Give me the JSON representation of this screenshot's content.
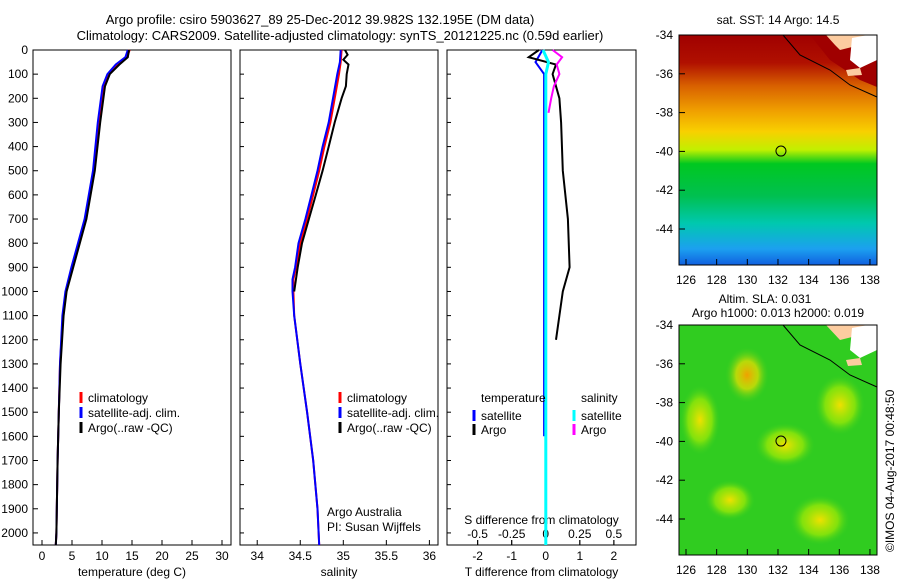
{
  "title_line1": "Argo profile: csiro 5903627_89 25-Dec-2012 39.982S 132.195E (DM data)",
  "title_line2": "Climatology: CARS2009. Satellite-adjusted climatology: synTS_20121225.nc (0.59d earlier)",
  "credit": "©IMOS 04-Aug-2017 00:48:50",
  "colors": {
    "climatology": "#ff0000",
    "satellite": "#0000ff",
    "argo": "#000000",
    "s_satellite": "#00ffff",
    "s_argo": "#ff00ff"
  },
  "chart_data": [
    {
      "type": "line",
      "name": "temperature",
      "xlabel": "temperature (deg C)",
      "ylabel": "",
      "xlim": [
        -1.5,
        31.5
      ],
      "ylim": [
        2050,
        0
      ],
      "xticks": [
        0,
        5,
        10,
        15,
        20,
        25,
        30
      ],
      "yticks": [
        0,
        100,
        200,
        300,
        400,
        500,
        600,
        700,
        800,
        900,
        1000,
        1100,
        1200,
        1300,
        1400,
        1500,
        1600,
        1700,
        1800,
        1900,
        2000
      ],
      "legend": [
        "climatology",
        "satellite-adj. clim.",
        "Argo(..raw -QC)"
      ],
      "legend_position": "lower-center",
      "series": [
        {
          "name": "climatology",
          "depth": [
            0,
            30,
            60,
            100,
            150,
            300,
            500,
            700,
            800,
            900,
            1000,
            1100,
            1300,
            1500,
            1700,
            2000,
            2050
          ],
          "values": [
            14.6,
            14.2,
            12.6,
            11.1,
            10.3,
            9.4,
            8.6,
            7.2,
            6.1,
            5.0,
            4.0,
            3.5,
            3.0,
            2.8,
            2.6,
            2.4,
            2.3
          ]
        },
        {
          "name": "satellite-adj. clim.",
          "depth": [
            0,
            30,
            60,
            100,
            150,
            300,
            500,
            700,
            800,
            900,
            1000,
            1100,
            1300,
            1500,
            1700,
            2000,
            2050
          ],
          "values": [
            14.3,
            13.9,
            12.3,
            10.9,
            10.1,
            9.3,
            8.5,
            7.1,
            6.0,
            4.9,
            3.9,
            3.4,
            3.0,
            2.8,
            2.6,
            2.4,
            2.3
          ]
        },
        {
          "name": "Argo(..raw -QC)",
          "depth": [
            0,
            30,
            60,
            100,
            150,
            300,
            500,
            700,
            800,
            900,
            1000,
            1100,
            1300,
            1500,
            1700,
            2000,
            2050
          ],
          "values": [
            14.5,
            14.3,
            12.9,
            11.3,
            10.5,
            9.7,
            8.8,
            7.4,
            6.3,
            5.2,
            4.1,
            3.6,
            3.1,
            2.8,
            2.6,
            2.4,
            2.3
          ]
        }
      ]
    },
    {
      "type": "line",
      "name": "salinity",
      "xlabel": "salinity",
      "xlim": [
        33.8,
        36.1
      ],
      "ylim": [
        2050,
        0
      ],
      "xticks": [
        34,
        34.5,
        35,
        35.5,
        36
      ],
      "legend": [
        "climatology",
        "satellite-adj. clim.",
        "Argo(..raw -QC)"
      ],
      "annotation": [
        "Argo Australia",
        "PI: Susan Wijffels"
      ],
      "series": [
        {
          "name": "climatology",
          "depth": [
            0,
            50,
            100,
            200,
            300,
            400,
            500,
            600,
            700,
            800,
            900,
            950,
            1000,
            1100,
            1300,
            1500,
            1700,
            1900,
            2050
          ],
          "values": [
            34.98,
            34.97,
            34.95,
            34.9,
            34.85,
            34.78,
            34.72,
            34.65,
            34.58,
            34.5,
            34.45,
            34.42,
            34.42,
            34.43,
            34.5,
            34.58,
            34.65,
            34.7,
            34.72
          ]
        },
        {
          "name": "satellite-adj. clim.",
          "depth": [
            0,
            50,
            100,
            200,
            300,
            400,
            500,
            600,
            700,
            800,
            900,
            950,
            1000,
            1100,
            1300,
            1500,
            1700,
            1900,
            2050
          ],
          "values": [
            34.97,
            34.96,
            34.93,
            34.88,
            34.83,
            34.76,
            34.7,
            34.63,
            34.56,
            34.48,
            34.44,
            34.41,
            34.41,
            34.43,
            34.5,
            34.58,
            34.65,
            34.7,
            34.72
          ]
        },
        {
          "name": "Argo(..raw -QC)",
          "depth": [
            0,
            20,
            40,
            60,
            100,
            150,
            200,
            300,
            400,
            500,
            600,
            700,
            800,
            900,
            1000
          ],
          "values": [
            35.02,
            35.05,
            35.0,
            35.06,
            35.04,
            35.03,
            34.98,
            34.9,
            34.83,
            34.76,
            34.68,
            34.6,
            34.52,
            34.47,
            34.43
          ]
        }
      ]
    },
    {
      "type": "line",
      "name": "differences",
      "xlabel": "T difference from climatology",
      "x2label": "S difference from climatology",
      "xlim": [
        -2.9,
        2.65
      ],
      "xticks": [
        -2,
        -1,
        0,
        1,
        2
      ],
      "x2ticks": [
        -0.5,
        -0.25,
        0,
        0.25,
        0.5
      ],
      "ylim": [
        2050,
        0
      ],
      "legend_titles": [
        "temperature",
        "salinity"
      ],
      "legend": [
        "satellite",
        "Argo",
        "satellite",
        "Argo"
      ],
      "series": [
        {
          "name": "T satellite",
          "depth": [
            0,
            50,
            100,
            300,
            600,
            1000,
            1600
          ],
          "values": [
            -0.1,
            -0.3,
            -0.05,
            -0.05,
            -0.05,
            -0.05,
            -0.05
          ]
        },
        {
          "name": "T Argo",
          "depth": [
            0,
            30,
            60,
            100,
            200,
            300,
            500,
            700,
            900,
            1000,
            1100,
            1200
          ],
          "values": [
            -0.2,
            -0.5,
            0.3,
            0.2,
            0.4,
            0.45,
            0.5,
            0.65,
            0.7,
            0.5,
            0.4,
            0.3
          ]
        },
        {
          "name": "S satellite",
          "depth": [
            0,
            50,
            100,
            300,
            600,
            1000,
            2000,
            2050
          ],
          "values": [
            -0.02,
            0.02,
            0.0,
            0.0,
            0.0,
            0.0,
            0.0,
            0.0
          ]
        },
        {
          "name": "S Argo",
          "depth": [
            0,
            30,
            60,
            100,
            150,
            200,
            260
          ],
          "values": [
            0.05,
            0.12,
            0.08,
            0.1,
            0.06,
            0.04,
            0.02
          ]
        }
      ]
    }
  ],
  "map_sst": {
    "title": "sat. SST: 14 Argo: 14.5",
    "xticks": [
      126,
      128,
      130,
      132,
      134,
      136,
      138
    ],
    "yticks": [
      -34,
      -36,
      -38,
      -40,
      -42,
      -44
    ],
    "marker": {
      "lon": 132.195,
      "lat": -39.982
    }
  },
  "map_sla": {
    "title1": "Altim. SLA: 0.031",
    "title2": "Argo h1000: 0.013 h2000: 0.019",
    "xticks": [
      126,
      128,
      130,
      132,
      134,
      136,
      138
    ],
    "yticks": [
      -34,
      -36,
      -38,
      -40,
      -42,
      -44
    ],
    "marker": {
      "lon": 132.195,
      "lat": -39.982
    }
  }
}
